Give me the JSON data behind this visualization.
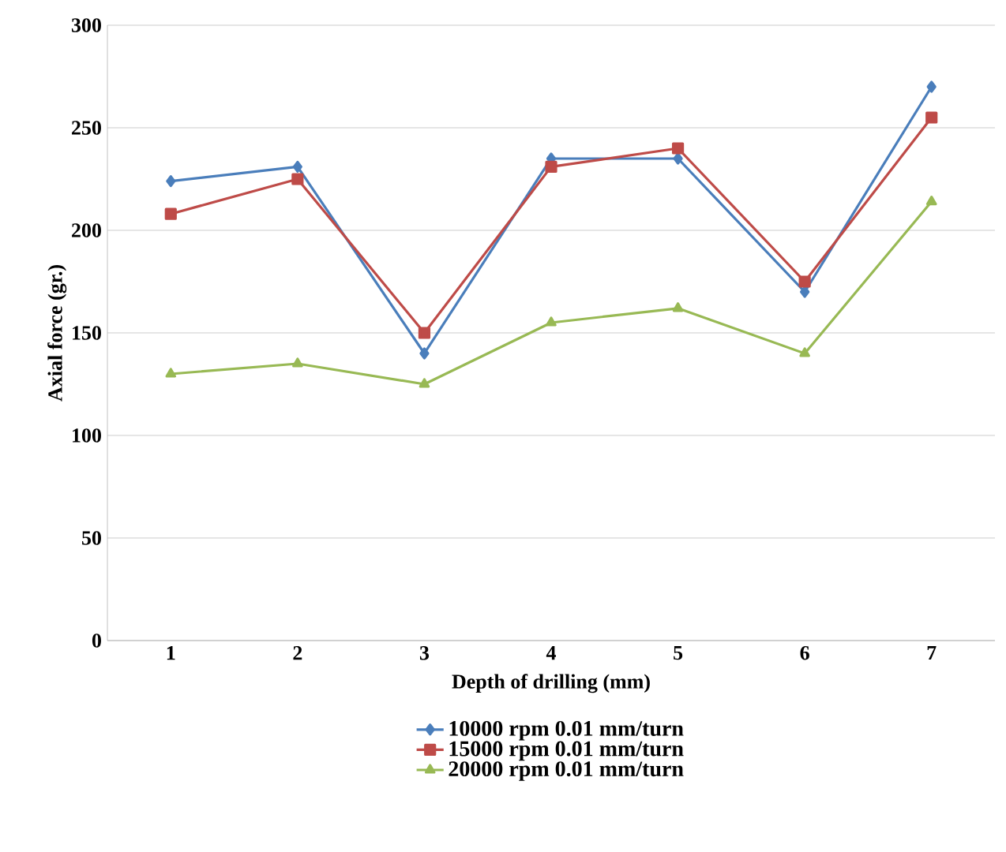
{
  "chart_data": {
    "type": "line",
    "xlabel": "Depth of drilling (mm)",
    "ylabel": "Axial force (gr.)",
    "categories": [
      "1",
      "2",
      "3",
      "4",
      "5",
      "6",
      "7"
    ],
    "series": [
      {
        "name": "10000 rpm 0.01 mm/turn",
        "color": "#4a7ebb",
        "marker": "diamond",
        "values": [
          224,
          231,
          140,
          235,
          235,
          170,
          270
        ]
      },
      {
        "name": "15000 rpm 0.01 mm/turn",
        "color": "#be4b48",
        "marker": "square",
        "values": [
          208,
          225,
          150,
          231,
          240,
          175,
          255
        ]
      },
      {
        "name": "20000 rpm 0.01 mm/turn",
        "color": "#98b954",
        "marker": "triangle",
        "values": [
          130,
          135,
          125,
          155,
          162,
          140,
          214
        ]
      }
    ],
    "ylim": [
      0,
      300
    ],
    "yticks": [
      0,
      50,
      100,
      150,
      200,
      250,
      300
    ],
    "grid": "y",
    "legend": "bottom",
    "line_style": "solid"
  }
}
